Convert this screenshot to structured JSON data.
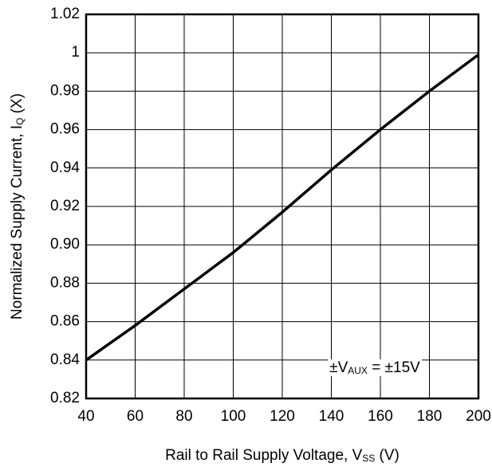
{
  "chart_data": {
    "type": "line",
    "x_label": [
      "Rail to Rail Supply Voltage, V",
      "SS",
      " (V)"
    ],
    "y_label": [
      "Normalized Supply Current, I",
      "Q",
      " (X)"
    ],
    "annotation": [
      "±V",
      "AUX",
      " = ±15V"
    ],
    "x": [
      40,
      60,
      80,
      100,
      120,
      140,
      160,
      180,
      200
    ],
    "series": [
      {
        "name": null,
        "color": "#000000",
        "values": [
          0.84,
          0.858,
          0.877,
          0.896,
          0.917,
          0.939,
          0.96,
          0.98,
          0.999
        ]
      }
    ],
    "xlim": [
      40,
      200
    ],
    "xticks": [
      40,
      60,
      80,
      100,
      120,
      140,
      160,
      180,
      200
    ],
    "ylim": [
      0.82,
      1.02
    ],
    "yticks": [
      0.82,
      0.84,
      0.86,
      0.88,
      {
        "value": 0.9,
        "label": "0.90"
      },
      0.92,
      0.94,
      0.96,
      0.98,
      1,
      1.02
    ],
    "grid": true
  }
}
